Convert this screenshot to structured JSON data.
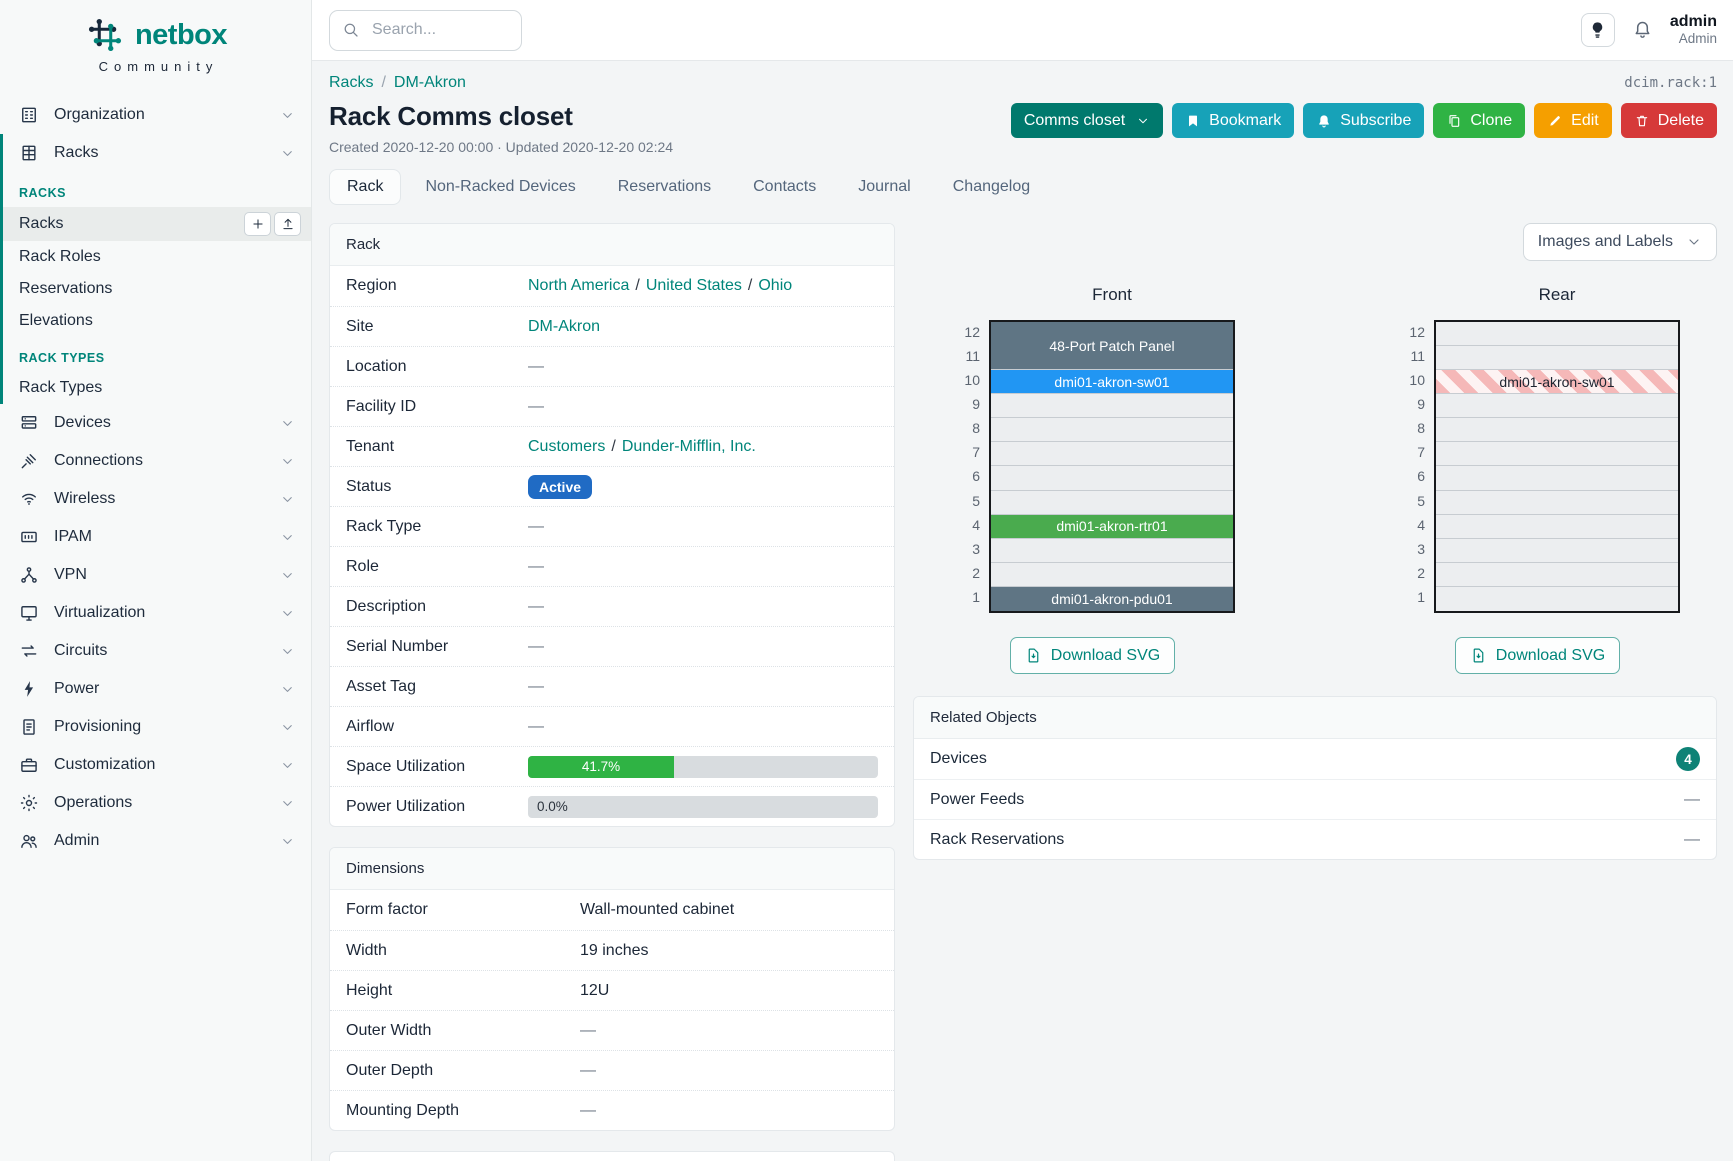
{
  "brand": {
    "name": "netbox",
    "subtitle": "Community"
  },
  "colors": {
    "brand_teal": "#00857a",
    "status_active": "#206bc4",
    "utilization_bar": "#2fb344",
    "config_button": "#00796d",
    "bookmark_button": "#17a2b8",
    "subscribe_button": "#17a2b8",
    "clone_button": "#2fb344",
    "edit_button": "#f59f00",
    "delete_button": "#d63939",
    "related_badge": "#0e8276",
    "device_slate": "#5f7584",
    "device_blue": "#2196f3",
    "device_green": "#4aab4e"
  },
  "topbar": {
    "search_placeholder": "Search...",
    "user_name": "admin",
    "user_role": "Admin"
  },
  "page": {
    "breadcrumbs": [
      "Racks",
      "DM-Akron"
    ],
    "object_id": "dcim.rack:1",
    "title": "Rack Comms closet",
    "meta": "Created 2020-12-20 00:00 · Updated 2020-12-20 02:24"
  },
  "actions": {
    "config_label": "Comms closet",
    "bookmark_label": "Bookmark",
    "subscribe_label": "Subscribe",
    "clone_label": "Clone",
    "edit_label": "Edit",
    "delete_label": "Delete"
  },
  "tabs": [
    {
      "label": "Rack",
      "active": true
    },
    {
      "label": "Non-Racked Devices"
    },
    {
      "label": "Reservations"
    },
    {
      "label": "Contacts"
    },
    {
      "label": "Journal"
    },
    {
      "label": "Changelog"
    }
  ],
  "sidebar": {
    "top_items": [
      {
        "label": "Organization",
        "icon": "building"
      },
      {
        "label": "Racks",
        "icon": "racks"
      }
    ],
    "groups": [
      {
        "header": "RACKS",
        "items": [
          {
            "label": "Racks",
            "active": true,
            "quick_actions": [
              {
                "icon": "plus",
                "name": "add-rack"
              },
              {
                "icon": "upload",
                "name": "import-racks"
              }
            ]
          },
          {
            "label": "Rack Roles"
          },
          {
            "label": "Reservations"
          },
          {
            "label": "Elevations"
          }
        ]
      },
      {
        "header": "RACK TYPES",
        "items": [
          {
            "label": "Rack Types"
          }
        ]
      }
    ],
    "menu_items": [
      {
        "label": "Devices",
        "icon": "devices"
      },
      {
        "label": "Connections",
        "icon": "connections"
      },
      {
        "label": "Wireless",
        "icon": "wireless"
      },
      {
        "label": "IPAM",
        "icon": "ipam"
      },
      {
        "label": "VPN",
        "icon": "vpn"
      },
      {
        "label": "Virtualization",
        "icon": "virtualization"
      },
      {
        "label": "Circuits",
        "icon": "circuits"
      },
      {
        "label": "Power",
        "icon": "power"
      },
      {
        "label": "Provisioning",
        "icon": "provisioning"
      },
      {
        "label": "Customization",
        "icon": "customization"
      },
      {
        "label": "Operations",
        "icon": "operations"
      },
      {
        "label": "Admin",
        "icon": "admin"
      }
    ]
  },
  "rack_panel": {
    "title": "Rack",
    "rows": [
      {
        "label": "Region",
        "type": "links",
        "parts": [
          "North America",
          "United States",
          "Ohio"
        ]
      },
      {
        "label": "Site",
        "type": "links",
        "parts": [
          "DM-Akron"
        ]
      },
      {
        "label": "Location",
        "type": "dash",
        "value": "—"
      },
      {
        "label": "Facility ID",
        "type": "dash",
        "value": "—"
      },
      {
        "label": "Tenant",
        "type": "links",
        "parts": [
          "Customers",
          "Dunder-Mifflin, Inc."
        ]
      },
      {
        "label": "Status",
        "type": "badge",
        "value": "Active",
        "color": "#206bc4"
      },
      {
        "label": "Rack Type",
        "type": "dash",
        "value": "—"
      },
      {
        "label": "Role",
        "type": "dash",
        "value": "—"
      },
      {
        "label": "Description",
        "type": "dash",
        "value": "—"
      },
      {
        "label": "Serial Number",
        "type": "dash",
        "value": "—"
      },
      {
        "label": "Asset Tag",
        "type": "dash",
        "value": "—"
      },
      {
        "label": "Airflow",
        "type": "dash",
        "value": "—"
      },
      {
        "label": "Space Utilization",
        "type": "progress",
        "value": "41.7%",
        "percent": 41.7,
        "color": "#2fb344"
      },
      {
        "label": "Power Utilization",
        "type": "progress",
        "value": "0.0%",
        "percent": 0,
        "color": "#2fb344"
      }
    ]
  },
  "dimensions_panel": {
    "title": "Dimensions",
    "rows": [
      {
        "label": "Form factor",
        "type": "text",
        "value": "Wall-mounted cabinet"
      },
      {
        "label": "Width",
        "type": "text",
        "value": "19 inches"
      },
      {
        "label": "Height",
        "type": "text",
        "value": "12U"
      },
      {
        "label": "Outer Width",
        "type": "dash",
        "value": "—"
      },
      {
        "label": "Outer Depth",
        "type": "dash",
        "value": "—"
      },
      {
        "label": "Mounting Depth",
        "type": "dash",
        "value": "—"
      }
    ]
  },
  "elevation": {
    "view_selector_label": "Images and Labels",
    "download_label": "Download SVG",
    "units_total": 12,
    "views": [
      {
        "title": "Front",
        "devices": [
          {
            "name": "48-Port Patch Panel",
            "top_unit": 12,
            "u_height": 2,
            "color": "#5f7584",
            "text_color": "#ffffff"
          },
          {
            "name": "dmi01-akron-sw01",
            "top_unit": 10,
            "u_height": 1,
            "color": "#2196f3",
            "text_color": "#ffffff"
          },
          {
            "name": "dmi01-akron-rtr01",
            "top_unit": 4,
            "u_height": 1,
            "color": "#4aab4e",
            "text_color": "#ffffff"
          },
          {
            "name": "dmi01-akron-pdu01",
            "top_unit": 1,
            "u_height": 1,
            "color": "#5f7584",
            "text_color": "#ffffff"
          }
        ]
      },
      {
        "title": "Rear",
        "devices": [
          {
            "name": "dmi01-akron-sw01",
            "top_unit": 10,
            "u_height": 1,
            "striped": true,
            "text_color": "#1d2430"
          }
        ]
      }
    ]
  },
  "related_objects": {
    "title": "Related Objects",
    "rows": [
      {
        "label": "Devices",
        "count": "4"
      },
      {
        "label": "Power Feeds",
        "value": "—"
      },
      {
        "label": "Rack Reservations",
        "value": "—"
      }
    ]
  }
}
